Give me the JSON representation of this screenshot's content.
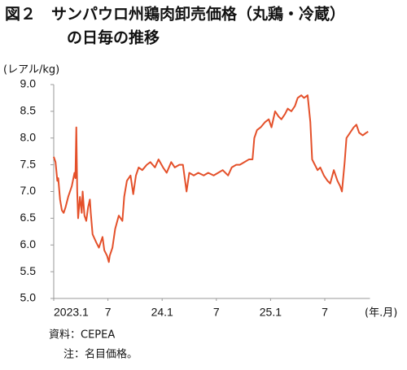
{
  "chart_data": {
    "type": "line",
    "title": [
      "図２　サンパウロ州鶏肉卸売価格（丸鶏・冷蔵）",
      "の日毎の推移"
    ],
    "y_label": "(レアル/kg)",
    "x_label": "(年.月)",
    "source": "資料：CEPEA",
    "note": "注：名目価格。",
    "x": [
      0,
      0.2,
      0.4,
      0.5,
      0.7,
      0.9,
      1.1,
      1.3,
      1.6,
      2.0,
      2.3,
      2.4,
      2.5,
      2.6,
      2.7,
      2.9,
      3.1,
      3.2,
      3.4,
      3.6,
      3.8,
      4.0,
      4.1,
      4.3,
      4.7,
      5.0,
      5.4,
      5.6,
      5.9,
      6.1,
      6.2,
      6.5,
      6.8,
      7.2,
      7.6,
      7.8,
      8.1,
      8.5,
      8.8,
      9.1,
      9.4,
      9.8,
      10.3,
      10.7,
      11.2,
      11.6,
      12.1,
      12.5,
      13.0,
      13.4,
      13.9,
      14.3,
      14.7,
      15.0,
      15.5,
      16.0,
      16.6,
      17.1,
      17.7,
      18.2,
      18.7,
      19.3,
      19.7,
      20.2,
      20.6,
      21.1,
      21.6,
      22.0,
      22.2,
      22.5,
      22.9,
      23.4,
      23.8,
      24.1,
      24.5,
      24.9,
      25.2,
      25.6,
      25.9,
      26.3,
      26.7,
      27.0,
      27.4,
      27.7,
      28.1,
      28.4,
      28.6,
      28.9,
      29.2,
      29.5,
      29.9,
      30.3,
      30.6,
      31.0,
      31.4,
      31.7,
      31.9,
      32.2,
      32.4,
      32.8,
      33.2,
      33.5,
      33.8,
      34.2,
      34.6,
      34.8
    ],
    "series": [
      {
        "color": "#e4502a",
        "values": [
          7.65,
          7.55,
          7.2,
          7.25,
          6.85,
          6.65,
          6.6,
          6.7,
          6.9,
          7.1,
          7.35,
          7.25,
          8.2,
          7.0,
          6.5,
          6.9,
          6.6,
          7.0,
          6.55,
          6.45,
          6.7,
          6.85,
          6.6,
          6.2,
          6.05,
          5.95,
          6.15,
          5.9,
          5.8,
          5.68,
          5.8,
          5.95,
          6.3,
          6.55,
          6.45,
          6.9,
          7.2,
          7.3,
          6.95,
          7.3,
          7.45,
          7.4,
          7.5,
          7.55,
          7.45,
          7.6,
          7.45,
          7.35,
          7.55,
          7.45,
          7.5,
          7.5,
          7.0,
          7.35,
          7.3,
          7.35,
          7.3,
          7.35,
          7.3,
          7.35,
          7.4,
          7.3,
          7.45,
          7.5,
          7.5,
          7.55,
          7.6,
          7.6,
          8.0,
          8.15,
          8.2,
          8.3,
          8.35,
          8.2,
          8.5,
          8.4,
          8.35,
          8.45,
          8.55,
          8.5,
          8.6,
          8.75,
          8.8,
          8.75,
          8.8,
          8.3,
          7.6,
          7.5,
          7.4,
          7.45,
          7.3,
          7.2,
          7.15,
          7.4,
          7.2,
          7.1,
          7.0,
          7.55,
          8.0,
          8.1,
          8.2,
          8.25,
          8.1,
          8.05,
          8.1,
          8.12
        ]
      }
    ],
    "xlim": [
      0,
      35
    ],
    "xticks": [
      {
        "value": 0,
        "label": "2023.1"
      },
      {
        "value": 6,
        "label": "7"
      },
      {
        "value": 12,
        "label": "24.1"
      },
      {
        "value": 18,
        "label": "7"
      },
      {
        "value": 24,
        "label": "25.1"
      },
      {
        "value": 30,
        "label": "7"
      }
    ],
    "ylim": [
      5,
      9
    ],
    "yticks": [
      {
        "value": 5,
        "label": "5.0"
      },
      5.5,
      {
        "value": 6,
        "label": "6.0"
      },
      6.5,
      {
        "value": 7,
        "label": "7.0"
      },
      7.5,
      {
        "value": 8,
        "label": "8.0"
      },
      8.5,
      {
        "value": 9,
        "label": "9.0"
      }
    ],
    "grid": false
  }
}
